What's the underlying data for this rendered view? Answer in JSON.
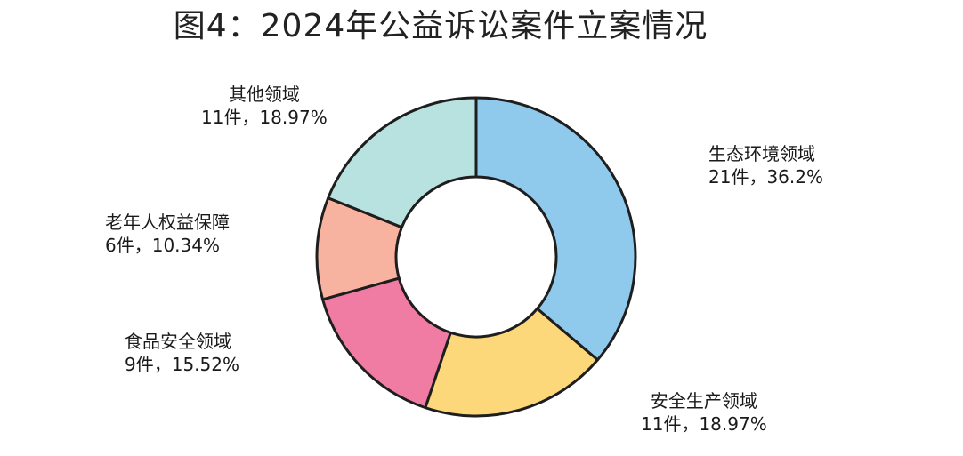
{
  "title": "图4：2024年公益诉讼案件立案情况",
  "chart_data": {
    "type": "pie",
    "donut": true,
    "title": "图4：2024年公益诉讼案件立案情况",
    "slices": [
      {
        "name": "生态环境领域",
        "count": 21,
        "unit_label": "21件，36.2%",
        "percent": 36.2,
        "color": "#8fc9ec"
      },
      {
        "name": "安全生产领域",
        "count": 11,
        "unit_label": "11件，18.97%",
        "percent": 18.97,
        "color": "#fdd87a"
      },
      {
        "name": "食品安全领域",
        "count": 9,
        "unit_label": "9件，15.52%",
        "percent": 15.52,
        "color": "#f07ca4"
      },
      {
        "name": "老年人权益保障",
        "count": 6,
        "unit_label": "6件，10.34%",
        "percent": 10.34,
        "color": "#f7b3a0"
      },
      {
        "name": "其他领域",
        "count": 11,
        "unit_label": "11件，18.97%",
        "percent": 18.97,
        "color": "#b8e2df"
      }
    ]
  }
}
